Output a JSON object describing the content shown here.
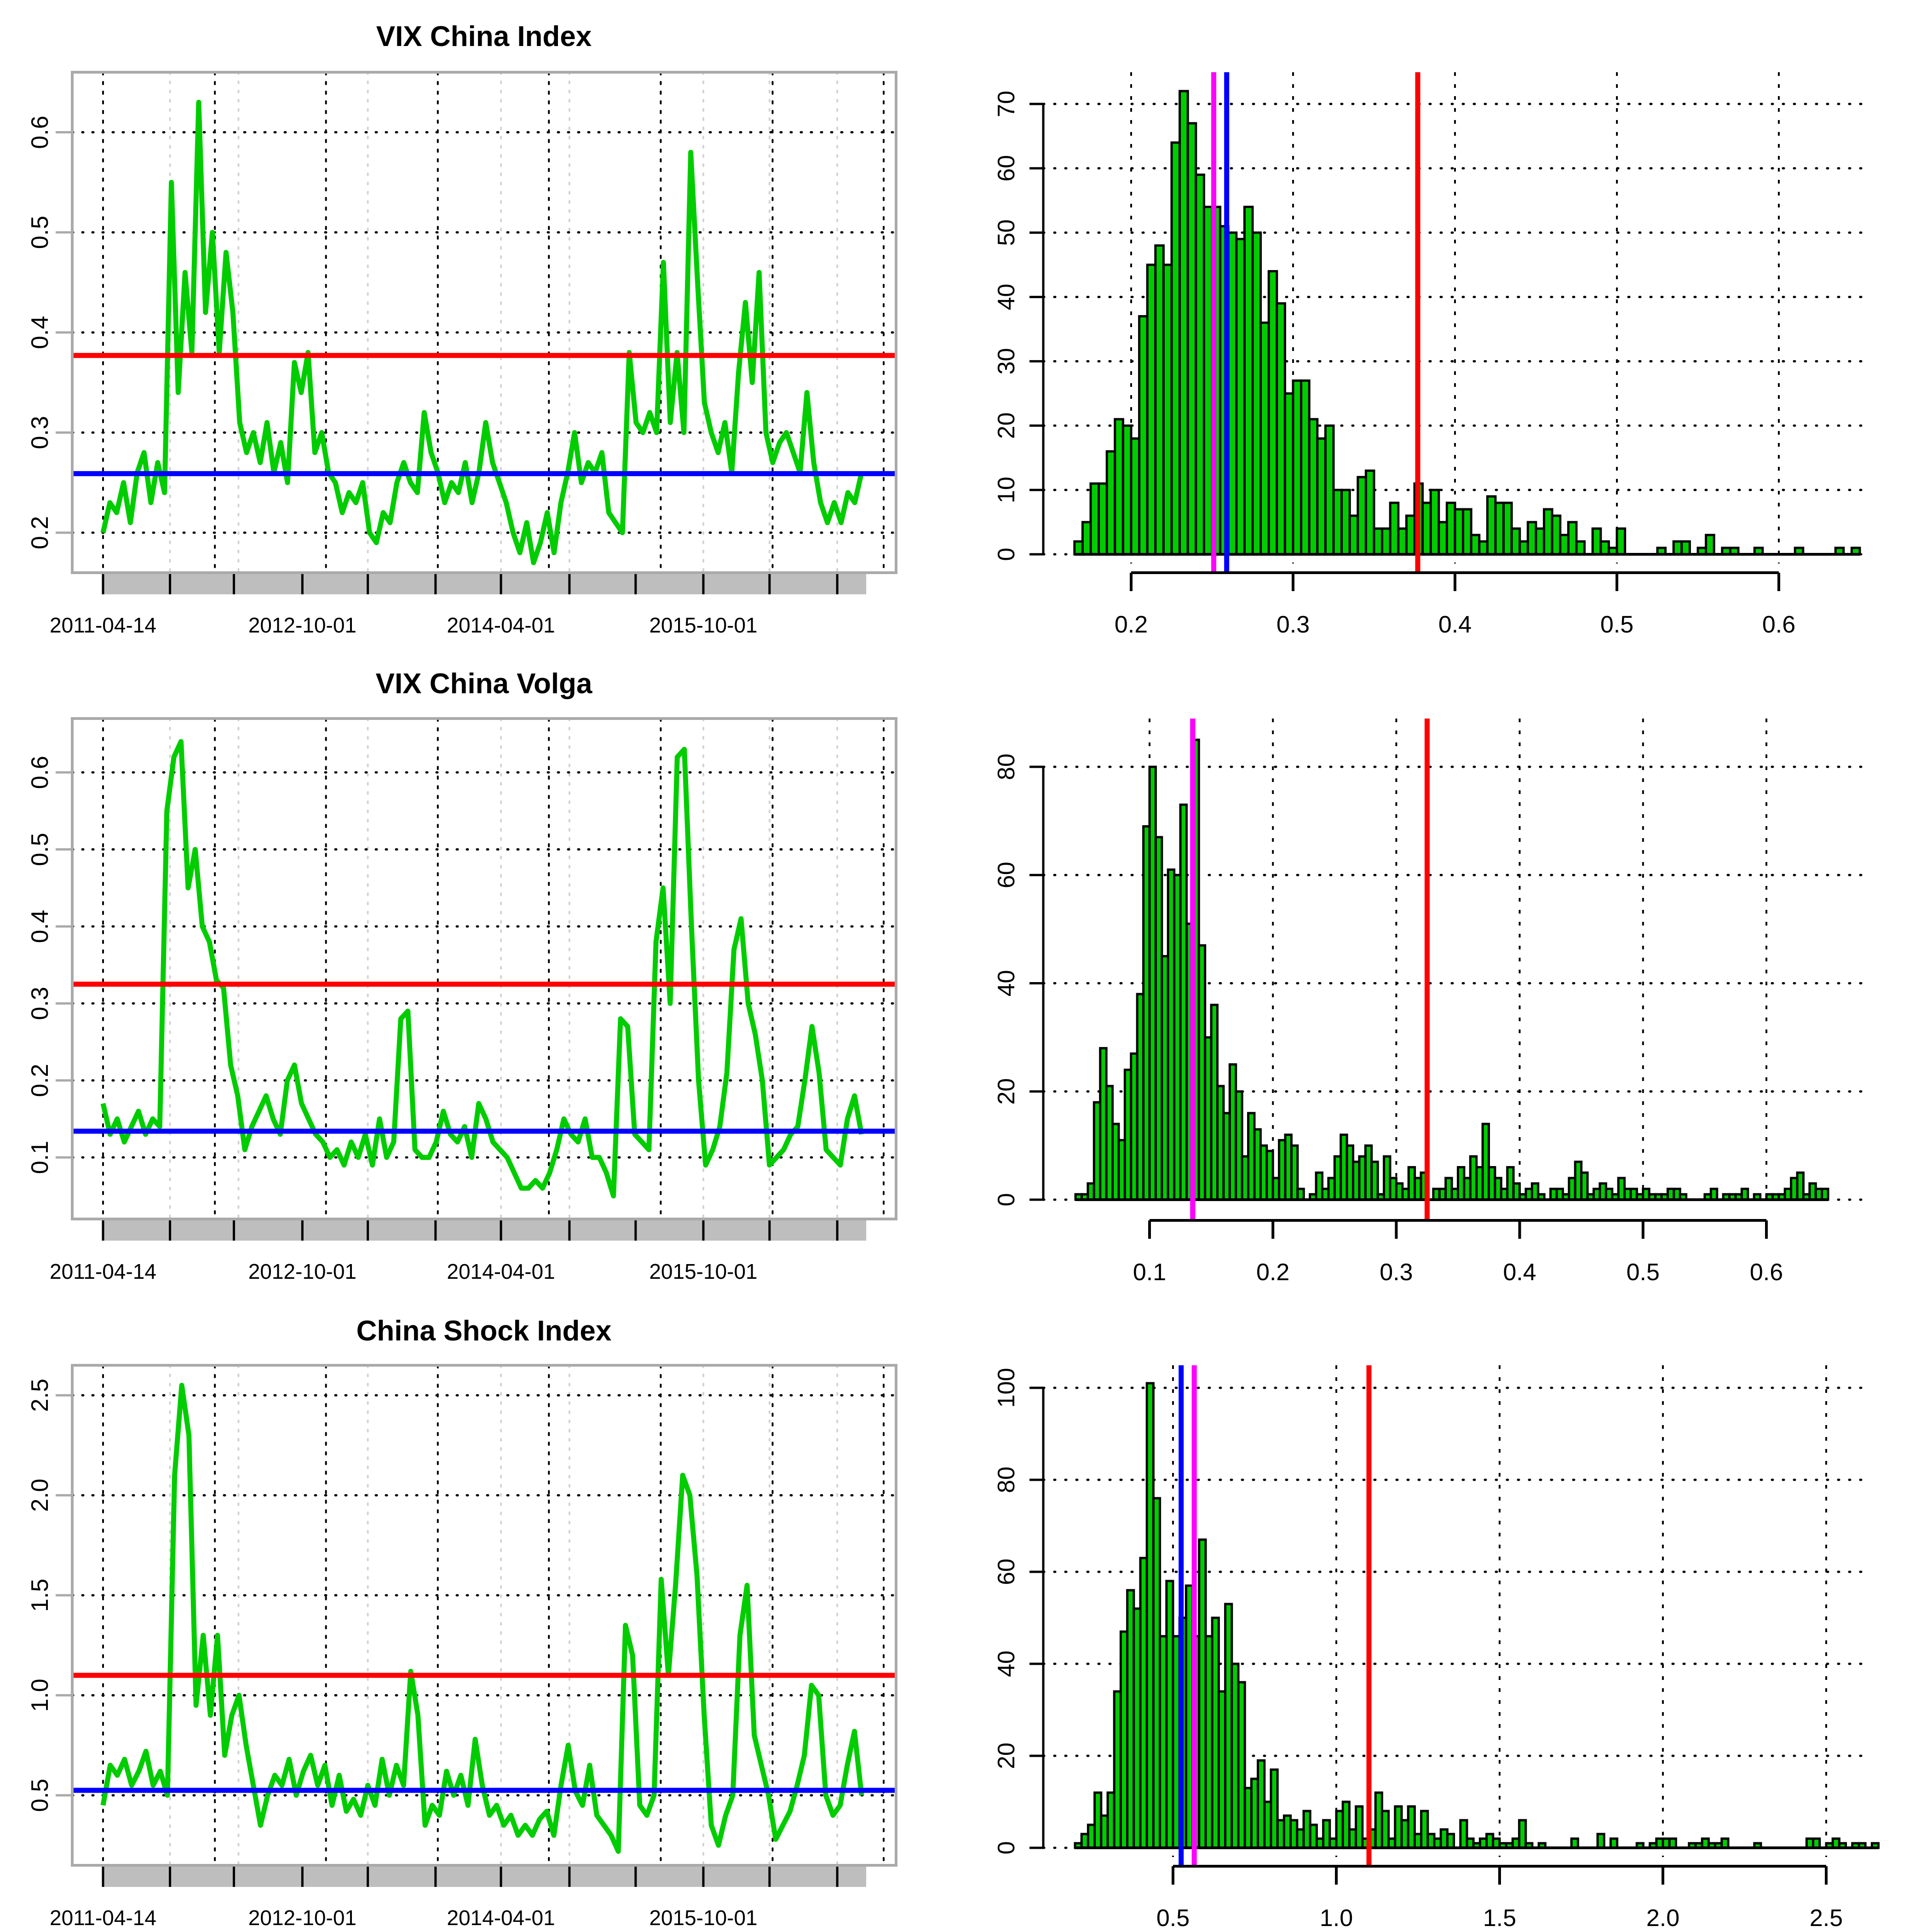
{
  "chart_data": [
    {
      "type": "line",
      "title": "VIX China Index",
      "x_tick_labels": [
        "2011-04-14",
        "2012-10-01",
        "2014-04-01",
        "2015-10-01"
      ],
      "y_tick_labels": [
        "0.2",
        "0.3",
        "0.4",
        "0.5",
        "0.6"
      ],
      "ylim": [
        0.16,
        0.66
      ],
      "hlines": [
        {
          "value": 0.377,
          "color": "#ff0000"
        },
        {
          "value": 0.259,
          "color": "#0000ff"
        }
      ],
      "series": [
        {
          "name": "VIX China Index",
          "color": "#00cc00",
          "values": [
            0.2,
            0.23,
            0.22,
            0.25,
            0.21,
            0.26,
            0.28,
            0.23,
            0.27,
            0.24,
            0.55,
            0.34,
            0.46,
            0.38,
            0.63,
            0.42,
            0.5,
            0.38,
            0.48,
            0.42,
            0.31,
            0.28,
            0.3,
            0.27,
            0.31,
            0.26,
            0.29,
            0.25,
            0.37,
            0.34,
            0.38,
            0.28,
            0.3,
            0.26,
            0.25,
            0.22,
            0.24,
            0.23,
            0.25,
            0.2,
            0.19,
            0.22,
            0.21,
            0.25,
            0.27,
            0.25,
            0.24,
            0.32,
            0.28,
            0.26,
            0.23,
            0.25,
            0.24,
            0.27,
            0.23,
            0.26,
            0.31,
            0.27,
            0.25,
            0.23,
            0.2,
            0.18,
            0.21,
            0.17,
            0.19,
            0.22,
            0.18,
            0.23,
            0.26,
            0.3,
            0.25,
            0.27,
            0.26,
            0.28,
            0.22,
            0.21,
            0.2,
            0.38,
            0.31,
            0.3,
            0.32,
            0.3,
            0.47,
            0.31,
            0.38,
            0.3,
            0.58,
            0.45,
            0.33,
            0.3,
            0.28,
            0.31,
            0.26,
            0.36,
            0.43,
            0.35,
            0.46,
            0.3,
            0.27,
            0.29,
            0.3,
            0.28,
            0.26,
            0.34,
            0.27,
            0.23,
            0.21,
            0.23,
            0.21,
            0.24,
            0.23,
            0.26
          ]
        }
      ]
    },
    {
      "type": "histogram",
      "bin_start": 0.165,
      "bin_width": 0.005,
      "x_tick_labels": [
        "0.2",
        "0.3",
        "0.4",
        "0.5",
        "0.6"
      ],
      "y_tick_labels": [
        "0",
        "10",
        "20",
        "30",
        "40",
        "50",
        "60",
        "70"
      ],
      "xlim": [
        0.15,
        0.655
      ],
      "ylim": [
        0,
        75
      ],
      "vlines": [
        {
          "value": 0.251,
          "color": "#ff00ff"
        },
        {
          "value": 0.259,
          "color": "#0000ff"
        },
        {
          "value": 0.377,
          "color": "#ff0000"
        }
      ],
      "counts": [
        2,
        5,
        11,
        11,
        16,
        21,
        20,
        18,
        37,
        45,
        48,
        45,
        64,
        72,
        67,
        59,
        54,
        54,
        51,
        50,
        49,
        54,
        50,
        36,
        44,
        39,
        25,
        27,
        27,
        21,
        18,
        20,
        10,
        10,
        6,
        12,
        13,
        4,
        4,
        8,
        4,
        6,
        11,
        8,
        10,
        5,
        8,
        7,
        7,
        3,
        2,
        9,
        8,
        8,
        4,
        2,
        5,
        4,
        7,
        6,
        3,
        5,
        2,
        0,
        4,
        2,
        1,
        4,
        0,
        0,
        0,
        0,
        1,
        0,
        2,
        2,
        0,
        1,
        3,
        0,
        1,
        1,
        0,
        0,
        1,
        0,
        0,
        0,
        0,
        1,
        0,
        0,
        0,
        0,
        1,
        0,
        1
      ]
    },
    {
      "type": "line",
      "title": "VIX China Volga",
      "x_tick_labels": [
        "2011-04-14",
        "2012-10-01",
        "2014-04-01",
        "2015-10-01"
      ],
      "y_tick_labels": [
        "0.1",
        "0.2",
        "0.3",
        "0.4",
        "0.5",
        "0.6"
      ],
      "ylim": [
        0.02,
        0.67
      ],
      "hlines": [
        {
          "value": 0.325,
          "color": "#ff0000"
        },
        {
          "value": 0.134,
          "color": "#0000ff"
        }
      ],
      "series": [
        {
          "name": "VIX China Volga",
          "color": "#00cc00",
          "values": [
            0.17,
            0.13,
            0.15,
            0.12,
            0.14,
            0.16,
            0.13,
            0.15,
            0.14,
            0.55,
            0.62,
            0.64,
            0.45,
            0.5,
            0.4,
            0.38,
            0.33,
            0.32,
            0.22,
            0.18,
            0.11,
            0.14,
            0.16,
            0.18,
            0.15,
            0.13,
            0.2,
            0.22,
            0.17,
            0.15,
            0.13,
            0.12,
            0.1,
            0.11,
            0.09,
            0.12,
            0.1,
            0.13,
            0.09,
            0.15,
            0.1,
            0.12,
            0.28,
            0.29,
            0.11,
            0.1,
            0.1,
            0.12,
            0.16,
            0.13,
            0.12,
            0.14,
            0.1,
            0.17,
            0.15,
            0.12,
            0.11,
            0.1,
            0.08,
            0.06,
            0.06,
            0.07,
            0.06,
            0.08,
            0.11,
            0.15,
            0.13,
            0.12,
            0.15,
            0.1,
            0.1,
            0.08,
            0.05,
            0.28,
            0.27,
            0.13,
            0.12,
            0.11,
            0.38,
            0.45,
            0.3,
            0.62,
            0.63,
            0.4,
            0.2,
            0.09,
            0.11,
            0.14,
            0.21,
            0.37,
            0.41,
            0.3,
            0.26,
            0.2,
            0.09,
            0.1,
            0.11,
            0.13,
            0.14,
            0.2,
            0.27,
            0.21,
            0.11,
            0.1,
            0.09,
            0.15,
            0.18,
            0.13
          ]
        }
      ]
    },
    {
      "type": "histogram",
      "bin_start": 0.04,
      "bin_width": 0.005,
      "x_tick_labels": [
        "0.1",
        "0.2",
        "0.3",
        "0.4",
        "0.5",
        "0.6"
      ],
      "y_tick_labels": [
        "0",
        "20",
        "40",
        "60",
        "80"
      ],
      "xlim": [
        0.03,
        0.68
      ],
      "ylim": [
        0,
        87
      ],
      "vlines": [
        {
          "value": 0.135,
          "color": "#0000ff"
        },
        {
          "value": 0.135,
          "color": "#ff00ff"
        },
        {
          "value": 0.325,
          "color": "#ff0000"
        }
      ],
      "counts": [
        1,
        1,
        3,
        18,
        28,
        21,
        14,
        11,
        24,
        27,
        38,
        69,
        80,
        67,
        45,
        61,
        60,
        73,
        51,
        85,
        47,
        30,
        36,
        21,
        16,
        25,
        20,
        8,
        16,
        13,
        10,
        9,
        4,
        11,
        12,
        10,
        2,
        0,
        1,
        5,
        2,
        4,
        8,
        12,
        10,
        7,
        8,
        10,
        7,
        1,
        8,
        4,
        3,
        2,
        6,
        4,
        5,
        0,
        2,
        2,
        4,
        2,
        6,
        4,
        8,
        6,
        14,
        6,
        4,
        2,
        6,
        3,
        1,
        2,
        3,
        1,
        0,
        2,
        2,
        1,
        4,
        7,
        5,
        1,
        2,
        3,
        2,
        1,
        4,
        2,
        2,
        1,
        2,
        1,
        1,
        1,
        2,
        2,
        1,
        0,
        0,
        0,
        1,
        2,
        0,
        1,
        1,
        1,
        2,
        0,
        1,
        0,
        1,
        1,
        1,
        2,
        4,
        5,
        1,
        3,
        2,
        2
      ]
    },
    {
      "type": "line",
      "title": "China Shock Index",
      "x_tick_labels": [
        "2011-04-14",
        "2012-10-01",
        "2014-04-01",
        "2015-10-01"
      ],
      "y_tick_labels": [
        "0.5",
        "1.0",
        "1.5",
        "2.0",
        "2.5"
      ],
      "ylim": [
        0.15,
        2.65
      ],
      "hlines": [
        {
          "value": 1.1,
          "color": "#ff0000"
        },
        {
          "value": 0.525,
          "color": "#0000ff"
        }
      ],
      "series": [
        {
          "name": "China Shock Index",
          "color": "#00cc00",
          "values": [
            0.45,
            0.65,
            0.6,
            0.68,
            0.55,
            0.62,
            0.72,
            0.55,
            0.62,
            0.5,
            2.1,
            2.55,
            2.3,
            0.95,
            1.3,
            0.9,
            1.3,
            0.7,
            0.9,
            1.0,
            0.75,
            0.55,
            0.35,
            0.5,
            0.6,
            0.55,
            0.68,
            0.5,
            0.62,
            0.7,
            0.55,
            0.65,
            0.45,
            0.6,
            0.42,
            0.48,
            0.4,
            0.55,
            0.45,
            0.68,
            0.5,
            0.65,
            0.55,
            1.12,
            0.9,
            0.35,
            0.45,
            0.4,
            0.62,
            0.5,
            0.6,
            0.45,
            0.78,
            0.55,
            0.4,
            0.45,
            0.35,
            0.4,
            0.3,
            0.35,
            0.3,
            0.38,
            0.42,
            0.3,
            0.55,
            0.75,
            0.52,
            0.45,
            0.65,
            0.4,
            0.35,
            0.3,
            0.22,
            1.35,
            1.2,
            0.45,
            0.4,
            0.5,
            1.58,
            1.1,
            1.55,
            2.1,
            2.0,
            1.6,
            0.9,
            0.35,
            0.25,
            0.4,
            0.5,
            1.3,
            1.55,
            0.8,
            0.65,
            0.5,
            0.28,
            0.35,
            0.42,
            0.55,
            0.7,
            1.05,
            1.0,
            0.5,
            0.4,
            0.45,
            0.65,
            0.82,
            0.5
          ]
        }
      ]
    },
    {
      "type": "histogram",
      "bin_start": 0.2,
      "bin_width": 0.02,
      "x_tick_labels": [
        "0.5",
        "1.0",
        "1.5",
        "2.0",
        "2.5"
      ],
      "y_tick_labels": [
        "0",
        "20",
        "40",
        "60",
        "80",
        "100"
      ],
      "xlim": [
        0.15,
        2.66
      ],
      "ylim": [
        0,
        105
      ],
      "vlines": [
        {
          "value": 0.525,
          "color": "#0000ff"
        },
        {
          "value": 0.565,
          "color": "#ff00ff"
        },
        {
          "value": 1.1,
          "color": "#ff0000"
        }
      ],
      "counts": [
        1,
        3,
        5,
        12,
        7,
        12,
        34,
        47,
        56,
        52,
        63,
        101,
        76,
        46,
        58,
        46,
        50,
        57,
        46,
        67,
        46,
        50,
        34,
        53,
        40,
        36,
        13,
        15,
        19,
        10,
        17,
        6,
        7,
        6,
        4,
        8,
        5,
        2,
        6,
        2,
        8,
        10,
        4,
        9,
        2,
        4,
        12,
        8,
        2,
        9,
        6,
        9,
        3,
        8,
        3,
        2,
        4,
        3,
        0,
        6,
        2,
        1,
        2,
        3,
        2,
        1,
        1,
        2,
        6,
        1,
        0,
        1,
        0,
        0,
        0,
        0,
        2,
        0,
        0,
        0,
        3,
        0,
        2,
        0,
        0,
        0,
        1,
        0,
        1,
        2,
        2,
        2,
        0,
        0,
        1,
        1,
        2,
        1,
        1,
        2,
        0,
        0,
        0,
        0,
        1,
        0,
        0,
        0,
        0,
        0,
        0,
        0,
        2,
        2,
        0,
        1,
        2,
        1,
        0,
        1,
        1,
        0,
        1
      ]
    }
  ]
}
